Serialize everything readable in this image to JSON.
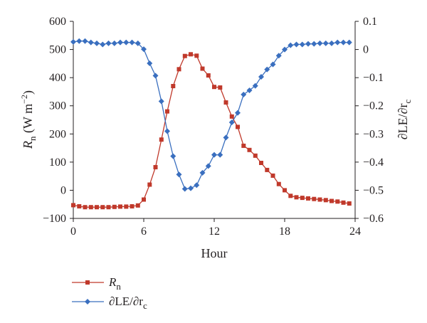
{
  "chart_data": {
    "type": "line",
    "xlabel": "Hour",
    "ylabel_left": {
      "main": "R",
      "sub": "n",
      "rest": " (W m",
      "sup": "−2",
      "close": ")"
    },
    "ylabel_right": {
      "main": "∂LE/∂r",
      "sub": "c"
    },
    "x_ticks": [
      "0",
      "6",
      "12",
      "18",
      "24"
    ],
    "y_left_ticks": [
      "600",
      "500",
      "400",
      "300",
      "200",
      "100",
      "0",
      "−100"
    ],
    "y_right_ticks": [
      "0.1",
      "0",
      "−0.1",
      "−0.2",
      "−0.3",
      "−0.4",
      "−0.5",
      "−0.6"
    ],
    "xlim": [
      0,
      24
    ],
    "ylim_left": [
      -100,
      600
    ],
    "ylim_right": [
      -0.6,
      0.1
    ],
    "grid": false,
    "legend_position": "bottom-left",
    "colors": {
      "rn": "#c0392b",
      "dle": "#3a6fbf"
    },
    "series": [
      {
        "name_main": "R",
        "name_sub": "n",
        "axis": "left",
        "marker": "square",
        "color": "#c0392b",
        "x": [
          0,
          0.5,
          1,
          1.5,
          2,
          2.5,
          3,
          3.5,
          4,
          4.5,
          5,
          5.5,
          6,
          6.5,
          7,
          7.5,
          8,
          8.5,
          9,
          9.5,
          10,
          10.5,
          11,
          11.5,
          12,
          12.5,
          13,
          13.5,
          14,
          14.5,
          15,
          15.5,
          16,
          16.5,
          17,
          17.5,
          18,
          18.5,
          19,
          19.5,
          20,
          20.5,
          21,
          21.5,
          22,
          22.5,
          23,
          23.5
        ],
        "values": [
          -53,
          -57,
          -60,
          -60,
          -60,
          -60,
          -60,
          -59,
          -58,
          -58,
          -57,
          -54,
          -33,
          20,
          82,
          180,
          280,
          370,
          430,
          477,
          483,
          478,
          432,
          408,
          367,
          365,
          312,
          262,
          225,
          158,
          143,
          123,
          97,
          72,
          52,
          22,
          0,
          -20,
          -25,
          -27,
          -29,
          -31,
          -33,
          -35,
          -38,
          -40,
          -44,
          -47
        ]
      },
      {
        "name_main": "∂LE/∂r",
        "name_sub": "c",
        "axis": "right",
        "marker": "diamond",
        "color": "#3a6fbf",
        "x": [
          0,
          0.5,
          1,
          1.5,
          2,
          2.5,
          3,
          3.5,
          4,
          4.5,
          5,
          5.5,
          6,
          6.5,
          7,
          7.5,
          8,
          8.5,
          9,
          9.5,
          10,
          10.5,
          11,
          11.5,
          12,
          12.5,
          13,
          13.5,
          14,
          14.5,
          15,
          15.5,
          16,
          16.5,
          17,
          17.5,
          18,
          18.5,
          19,
          19.5,
          20,
          20.5,
          21,
          21.5,
          22,
          22.5,
          23,
          23.5
        ],
        "values": [
          0.027,
          0.03,
          0.03,
          0.025,
          0.022,
          0.018,
          0.022,
          0.022,
          0.025,
          0.025,
          0.025,
          0.022,
          0.001,
          -0.049,
          -0.093,
          -0.184,
          -0.29,
          -0.379,
          -0.444,
          -0.495,
          -0.493,
          -0.482,
          -0.438,
          -0.414,
          -0.374,
          -0.374,
          -0.313,
          -0.259,
          -0.225,
          -0.16,
          -0.145,
          -0.129,
          -0.097,
          -0.071,
          -0.053,
          -0.022,
          0,
          0.015,
          0.018,
          0.018,
          0.02,
          0.02,
          0.022,
          0.022,
          0.022,
          0.025,
          0.025,
          0.025
        ]
      }
    ]
  }
}
